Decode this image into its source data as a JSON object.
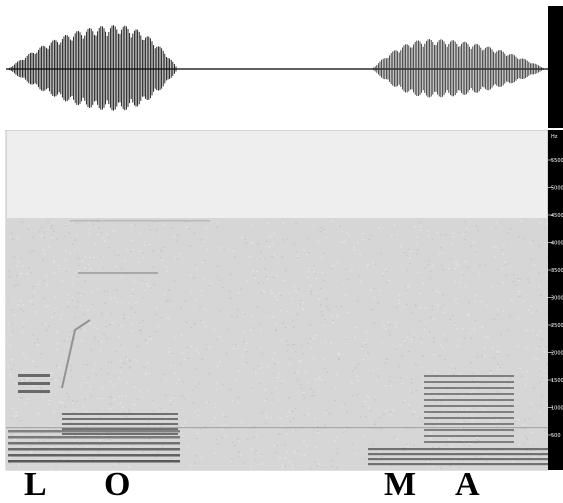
{
  "waveform": {
    "segments": [
      "L-O",
      "M-A"
    ]
  },
  "spectrogram": {
    "unit_label": "Hz",
    "ticks": [
      "5500",
      "5000",
      "4500",
      "4000",
      "3500",
      "3000",
      "2500",
      "2000",
      "1500",
      "1000",
      "500"
    ]
  },
  "phonemes": [
    "L",
    "O",
    "M",
    "A"
  ],
  "colors": {
    "background": "#ffffff",
    "spectrogram_bg": "#eeeeee",
    "noise": "#d8d8d8",
    "formant": "#333333",
    "ruler": "#000000"
  }
}
